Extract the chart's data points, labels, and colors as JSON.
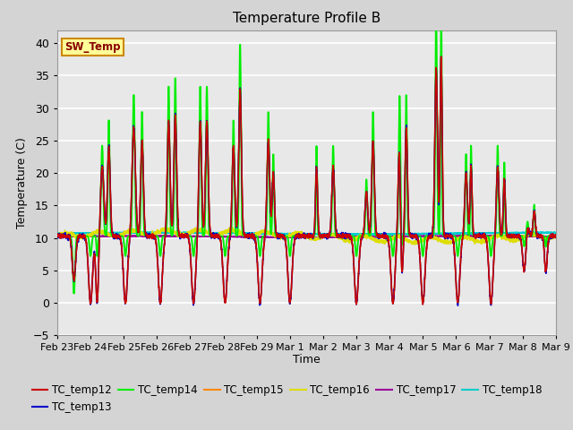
{
  "title": "Temperature Profile B",
  "xlabel": "Time",
  "ylabel": "Temperature (C)",
  "ylim": [
    -5,
    42
  ],
  "series_colors": {
    "TC_temp12": "#cc0000",
    "TC_temp13": "#0000cc",
    "TC_temp14": "#00ee00",
    "TC_temp15": "#ff8800",
    "TC_temp16": "#dddd00",
    "TC_temp17": "#990099",
    "TC_temp18": "#00cccc"
  },
  "bg_color": "#e8e8e8",
  "fig_bg": "#d4d4d4",
  "sw_temp_box": {
    "text": "SW_Temp",
    "bg": "#ffff99",
    "edge": "#cc8800",
    "text_color": "#880000"
  },
  "x_tick_labels": [
    "Feb 23",
    "Feb 24",
    "Feb 25",
    "Feb 26",
    "Feb 27",
    "Feb 28",
    "Feb 29",
    "Mar 1",
    "Mar 2",
    "Mar 3",
    "Mar 4",
    "Mar 5",
    "Mar 6",
    "Mar 7",
    "Mar 8",
    "Mar 9"
  ],
  "y_ticks": [
    -5,
    0,
    5,
    10,
    15,
    20,
    25,
    30,
    35,
    40
  ]
}
